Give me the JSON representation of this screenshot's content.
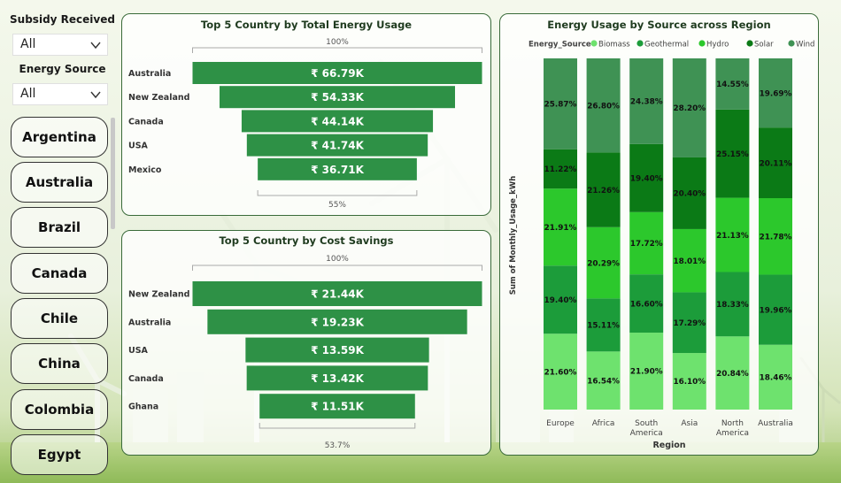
{
  "slicers": {
    "subsidy": {
      "title": "Subsidy Received",
      "value": "All"
    },
    "energy_source": {
      "title": "Energy Source",
      "value": "All"
    },
    "countries": [
      "Argentina",
      "Australia",
      "Brazil",
      "Canada",
      "Chile",
      "China",
      "Colombia",
      "Egypt"
    ]
  },
  "colors": {
    "funnel_bar": "#2e9146",
    "Biomass": "#6ee26e",
    "Geothermal": "#1c9c3a",
    "Hydro": "#2cc82c",
    "Solar": "#0b7a16",
    "Wind": "#3f9254"
  },
  "chart_data": [
    {
      "type": "bar",
      "subtype": "funnel",
      "title": "Top 5 Country by Total Energy Usage",
      "categories": [
        "Australia",
        "New Zealand",
        "Canada",
        "USA",
        "Mexico"
      ],
      "values": [
        66.79,
        54.33,
        44.14,
        41.74,
        36.71
      ],
      "value_labels": [
        "₹ 66.79K",
        "₹ 54.33K",
        "₹ 44.14K",
        "₹ 41.74K",
        "₹ 36.71K"
      ],
      "top_label": "100%",
      "bottom_label": "55%"
    },
    {
      "type": "bar",
      "subtype": "funnel",
      "title": "Top 5 Country by Cost Savings",
      "categories": [
        "New Zealand",
        "Australia",
        "USA",
        "Canada",
        "Ghana"
      ],
      "values": [
        21.44,
        19.23,
        13.59,
        13.42,
        11.51
      ],
      "value_labels": [
        "₹ 21.44K",
        "₹ 19.23K",
        "₹ 13.59K",
        "₹ 13.42K",
        "₹ 11.51K"
      ],
      "top_label": "100%",
      "bottom_label": "53.7%"
    },
    {
      "type": "bar",
      "subtype": "stacked-100",
      "title": "Energy Usage by Source across Region",
      "legend_title": "Energy_Source",
      "legend_position": "top",
      "xlabel": "Region",
      "ylabel": "Sum of Monthly_Usage_kWh",
      "categories": [
        "Europe",
        "Africa",
        "South America",
        "Asia",
        "North America",
        "Australia"
      ],
      "category_lines": [
        [
          "Europe"
        ],
        [
          "Africa"
        ],
        [
          "South",
          "America"
        ],
        [
          "Asia"
        ],
        [
          "North",
          "America"
        ],
        [
          "Australia"
        ]
      ],
      "series": [
        {
          "name": "Biomass",
          "values": [
            21.6,
            16.54,
            21.9,
            16.1,
            20.84,
            18.46
          ]
        },
        {
          "name": "Geothermal",
          "values": [
            19.4,
            15.11,
            16.6,
            17.29,
            18.33,
            19.96
          ]
        },
        {
          "name": "Hydro",
          "values": [
            21.91,
            20.29,
            17.72,
            18.01,
            21.13,
            21.78
          ]
        },
        {
          "name": "Solar",
          "values": [
            11.22,
            21.26,
            19.4,
            20.4,
            25.15,
            20.11
          ]
        },
        {
          "name": "Wind",
          "values": [
            25.87,
            26.8,
            24.38,
            28.2,
            14.55,
            19.69
          ]
        }
      ],
      "ylim": [
        0,
        100
      ]
    }
  ]
}
